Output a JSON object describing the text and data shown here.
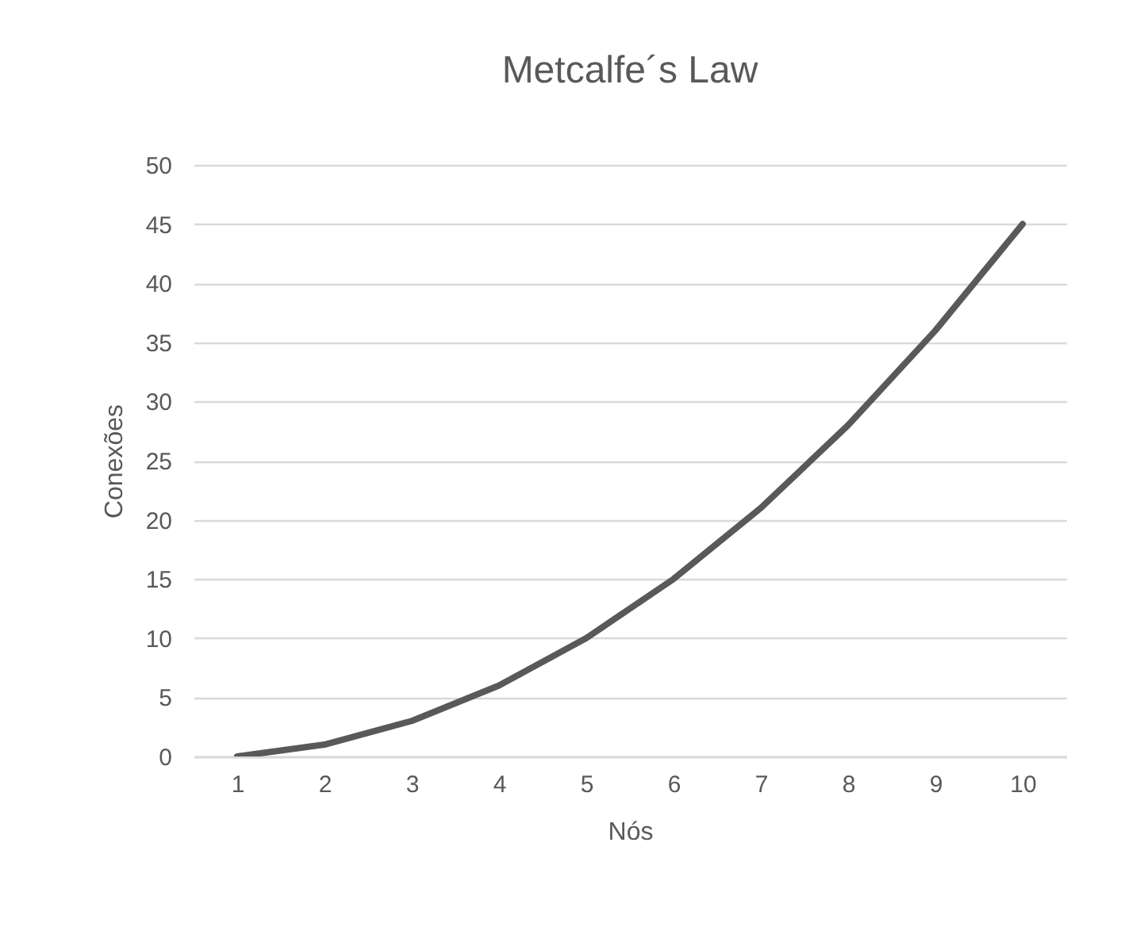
{
  "chart_data": {
    "type": "line",
    "title": "Metcalfe´s Law",
    "xlabel": "Nós",
    "ylabel": "Conexões",
    "categories": [
      "1",
      "2",
      "3",
      "4",
      "5",
      "6",
      "7",
      "8",
      "9",
      "10"
    ],
    "series": [
      {
        "color": "#595959",
        "values": [
          0,
          1,
          3,
          6,
          10,
          15,
          21,
          28,
          36,
          45
        ]
      }
    ],
    "ylim": [
      0,
      50
    ],
    "yticks": [
      0,
      5,
      10,
      15,
      20,
      25,
      30,
      35,
      40,
      45,
      50
    ],
    "grid": "y",
    "legend": false,
    "marker": "none",
    "line_style": "solid"
  }
}
